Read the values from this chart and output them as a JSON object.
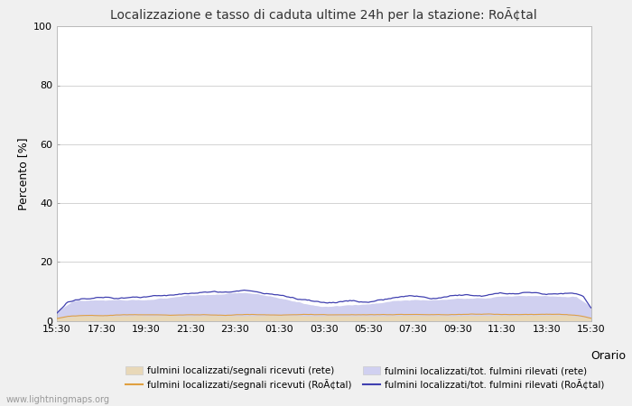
{
  "title": "Localizzazione e tasso di caduta ultime 24h per la stazione: RoÃ¢tal",
  "ylabel": "Percento [%]",
  "xlabel": "Orario",
  "ylim": [
    0,
    100
  ],
  "yticks": [
    0,
    20,
    40,
    60,
    80,
    100
  ],
  "xtick_labels": [
    "15:30",
    "17:30",
    "19:30",
    "21:30",
    "23:30",
    "01:30",
    "03:30",
    "05:30",
    "07:30",
    "09:30",
    "11:30",
    "13:30",
    "15:30"
  ],
  "n_points": 289,
  "background_color": "#f0f0f0",
  "plot_bg_color": "#ffffff",
  "grid_color": "#cccccc",
  "fill_rete_color": "#e8d8b8",
  "fill_rete_alpha": 1.0,
  "fill_local_color": "#d0d0f0",
  "fill_local_alpha": 1.0,
  "line_rete_color": "#e0a040",
  "line_local_color": "#4040b0",
  "watermark": "www.lightningmaps.org",
  "legend_labels": [
    "fulmini localizzati/segnali ricevuti (rete)",
    "fulmini localizzati/segnali ricevuti (RoÃ¢tal)",
    "fulmini localizzati/tot. fulmini rilevati (rete)",
    "fulmini localizzati/tot. fulmini rilevati (RoÃ¢tal)"
  ]
}
